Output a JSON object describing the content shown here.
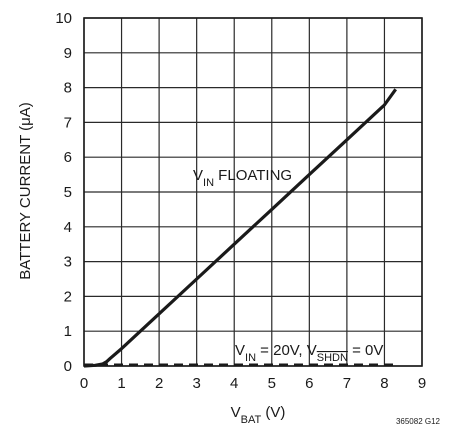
{
  "chart_data": {
    "type": "line",
    "title": "",
    "xlabel": {
      "main": "V",
      "sub": "BAT",
      "rest": " (V)"
    },
    "ylabel": "BATTERY CURRENT (μA)",
    "xlim": [
      0,
      9
    ],
    "ylim": [
      0,
      10
    ],
    "x_ticks": [
      "0",
      "1",
      "2",
      "3",
      "4",
      "5",
      "6",
      "7",
      "8",
      "9"
    ],
    "y_ticks": [
      "0",
      "1",
      "2",
      "3",
      "4",
      "5",
      "6",
      "7",
      "8",
      "9",
      "10"
    ],
    "grid": true,
    "series": [
      {
        "name": "V_IN FLOATING",
        "style": "solid",
        "color": "#1a1a1a",
        "x": [
          0,
          0.3,
          0.5,
          0.6,
          0.7,
          1.0,
          2.0,
          3.0,
          4.0,
          5.0,
          6.0,
          7.0,
          8.0,
          8.3
        ],
        "y": [
          0.0,
          0.02,
          0.06,
          0.12,
          0.22,
          0.5,
          1.5,
          2.5,
          3.5,
          4.5,
          5.5,
          6.5,
          7.5,
          7.95
        ]
      },
      {
        "name": "V_IN = 20V, V_SHDN = 0V",
        "style": "dashed",
        "color": "#1a1a1a",
        "x": [
          0,
          8.3
        ],
        "y": [
          0.03,
          0.03
        ]
      }
    ],
    "annotations": {
      "floating": {
        "main": "V",
        "sub": "IN",
        "rest": " FLOATING"
      },
      "shdn": {
        "v1": "V",
        "s1": "IN",
        "mid": " = 20V, V",
        "s2": "SHDN",
        "end": " = 0V"
      }
    },
    "figure_code": "365082 G12"
  }
}
